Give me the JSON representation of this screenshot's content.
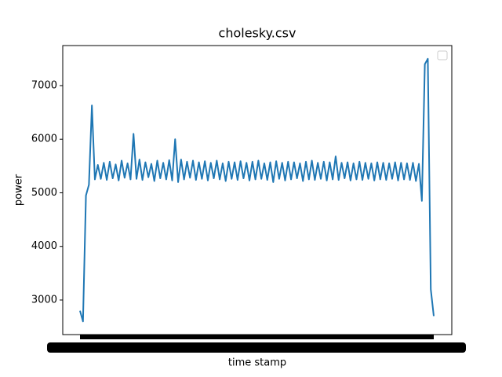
{
  "chart_data": {
    "type": "line",
    "title": "cholesky.csv",
    "x_label": "time stamp",
    "y_label": "power",
    "series": [
      {
        "color": "#1f77b4",
        "values": [
          2800,
          2600,
          4950,
          5150,
          6630,
          5250,
          5520,
          5260,
          5560,
          5240,
          5580,
          5270,
          5530,
          5230,
          5600,
          5280,
          5550,
          5250,
          6100,
          5260,
          5620,
          5240,
          5570,
          5290,
          5540,
          5220,
          5600,
          5270,
          5560,
          5250,
          5610,
          5230,
          6000,
          5200,
          5620,
          5250,
          5580,
          5280,
          5600,
          5240,
          5570,
          5260,
          5590,
          5230,
          5560,
          5270,
          5600,
          5250,
          5550,
          5220,
          5580,
          5260,
          5570,
          5240,
          5590,
          5270,
          5560,
          5230,
          5580,
          5250,
          5600,
          5260,
          5550,
          5240,
          5570,
          5200,
          5590,
          5260,
          5560,
          5230,
          5580,
          5250,
          5570,
          5270,
          5550,
          5220,
          5580,
          5250,
          5600,
          5240,
          5560,
          5260,
          5580,
          5230,
          5570,
          5250,
          5680,
          5240,
          5560,
          5270,
          5570,
          5230,
          5550,
          5250,
          5580,
          5240,
          5560,
          5260,
          5550,
          5230,
          5570,
          5250,
          5560,
          5240,
          5550,
          5260,
          5570,
          5230,
          5560,
          5250,
          5550,
          5240,
          5560,
          5220,
          5540,
          4850,
          7400,
          7500,
          3200,
          2700
        ]
      }
    ],
    "ylim": [
      2355,
      7747
    ],
    "yticks": [
      3000,
      4000,
      5000,
      6000,
      7000
    ]
  }
}
